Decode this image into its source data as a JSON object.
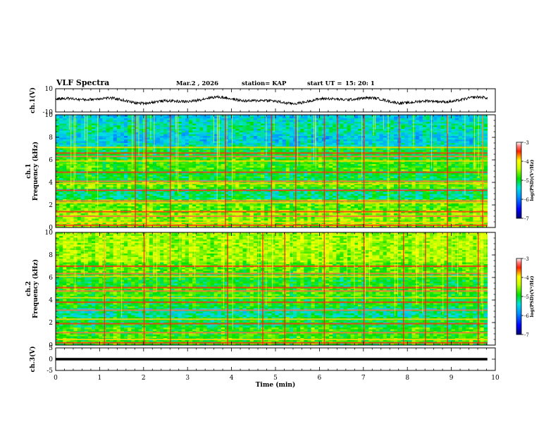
{
  "header": {
    "title": "VLF Spectra",
    "date": "Mar.2 , 2026",
    "station": "station= KAP",
    "start_label": "start UT =",
    "start_value": "15: 20: 1"
  },
  "chart_data": [
    {
      "type": "line",
      "panel": "ch1-waveform",
      "ylabel": "ch.1(V)",
      "ylim": [
        -10,
        10
      ],
      "y_ticks": [
        "10",
        "-10"
      ],
      "xlim": [
        0,
        10
      ],
      "x_extent_min": 9.82,
      "description_values": {
        "baseline": 0,
        "typical_amplitude": 4
      }
    },
    {
      "type": "heatmap",
      "panel": "ch1-spectrogram",
      "ylabel": "ch.1 Frequency (kHz)",
      "ylim": [
        0,
        10
      ],
      "y_ticks": [
        "0",
        "2",
        "4",
        "6",
        "8",
        "10"
      ],
      "xlim": [
        0,
        10
      ],
      "x_extent_min": 9.82,
      "colorbar": {
        "label": "log(PSD)(V²/Hz)",
        "range": [
          -7,
          -3
        ],
        "ticks": [
          "-3",
          "-4",
          "-5",
          "-6",
          "-7"
        ]
      },
      "bands_khz": [
        0.2,
        0.45,
        1.0,
        1.4,
        2.2,
        2.35,
        3.3,
        3.9,
        4.1,
        4.9,
        5.9,
        6.3,
        6.6,
        7.1
      ],
      "vertical_streaks_min": [
        1.8,
        2.05,
        2.6,
        3.85,
        4.9,
        5.45,
        6.1,
        6.4,
        7.0,
        7.8,
        8.9,
        9.7
      ]
    },
    {
      "type": "heatmap",
      "panel": "ch2-spectrogram",
      "ylabel": "ch.2 Frequency (kHz)",
      "ylim": [
        0,
        10
      ],
      "y_ticks": [
        "0",
        "2",
        "4",
        "6",
        "8",
        "10"
      ],
      "xlim": [
        0,
        10
      ],
      "x_extent_min": 9.82,
      "colorbar": {
        "label": "log(PSD)(V²/Hz)",
        "range": [
          -7,
          -3
        ],
        "ticks": [
          "-3",
          "-4",
          "-5",
          "-6",
          "-7"
        ]
      },
      "bands_khz": [
        0.2,
        0.5,
        1.1,
        1.9,
        2.3,
        3.1,
        3.8,
        4.2,
        4.8,
        5.1,
        6.1,
        6.35,
        7.0
      ],
      "vertical_streaks_min": [
        1.1,
        2.0,
        2.6,
        3.9,
        4.7,
        5.2,
        6.1,
        7.0,
        7.9,
        8.4,
        8.9,
        9.6
      ]
    },
    {
      "type": "line",
      "panel": "ch3-waveform",
      "ylabel": "ch.3(V)",
      "ylim": [
        -5,
        5
      ],
      "y_ticks": [
        "5",
        "0",
        "-5"
      ],
      "xlim": [
        0,
        10
      ],
      "x_extent_min": 9.82,
      "description_values": {
        "baseline": 0,
        "band_half_width": 0.55
      }
    }
  ],
  "x_axis": {
    "label": "Time (min)",
    "ticks": [
      "0",
      "1",
      "2",
      "3",
      "4",
      "5",
      "6",
      "7",
      "8",
      "9",
      "10"
    ]
  }
}
